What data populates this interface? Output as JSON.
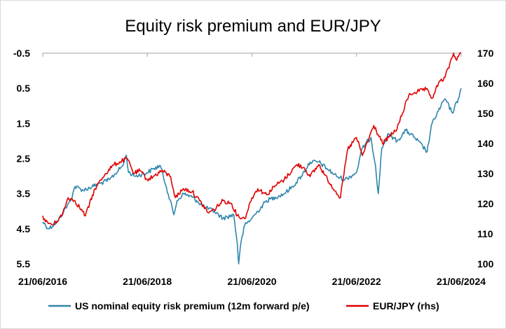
{
  "chart_data": {
    "type": "line",
    "title": "Equity risk premium and EUR/JPY",
    "x_tick_labels": [
      "21/06/2016",
      "21/06/2018",
      "21/06/2020",
      "21/06/2022",
      "21/06/2024"
    ],
    "x_range": [
      "2016-06-21",
      "2024-06-21"
    ],
    "y_left": {
      "inverted": true,
      "range": [
        -0.5,
        5.5
      ],
      "ticks": [
        -0.5,
        0.5,
        1.5,
        2.5,
        3.5,
        4.5,
        5.5
      ],
      "tick_labels": [
        "-0.5",
        "0.5",
        "1.5",
        "2.5",
        "3.5",
        "4.5",
        "5.5"
      ]
    },
    "y_right": {
      "range": [
        100,
        170
      ],
      "ticks": [
        100,
        110,
        120,
        130,
        140,
        150,
        160,
        170
      ],
      "tick_labels": [
        "100",
        "110",
        "120",
        "130",
        "140",
        "150",
        "160",
        "170"
      ]
    },
    "grid": false,
    "legend_position": "bottom",
    "series": [
      {
        "name": "US nominal equity risk premium (12m forward p/e)",
        "axis": "left",
        "color": "#2E86AB",
        "points": [
          [
            "2016-06-21",
            4.3
          ],
          [
            "2016-08-01",
            4.5
          ],
          [
            "2016-10-01",
            4.3
          ],
          [
            "2016-11-15",
            4.0
          ],
          [
            "2017-01-01",
            3.7
          ],
          [
            "2017-02-01",
            3.3
          ],
          [
            "2017-04-01",
            3.4
          ],
          [
            "2017-06-01",
            3.3
          ],
          [
            "2017-08-01",
            3.2
          ],
          [
            "2017-10-01",
            3.1
          ],
          [
            "2018-01-01",
            2.7
          ],
          [
            "2018-01-26",
            2.4
          ],
          [
            "2018-02-10",
            2.9
          ],
          [
            "2018-04-01",
            3.0
          ],
          [
            "2018-06-21",
            2.9
          ],
          [
            "2018-08-01",
            2.8
          ],
          [
            "2018-09-20",
            2.7
          ],
          [
            "2018-11-01",
            3.3
          ],
          [
            "2018-12-24",
            4.1
          ],
          [
            "2019-01-15",
            3.7
          ],
          [
            "2019-03-01",
            3.5
          ],
          [
            "2019-05-01",
            3.6
          ],
          [
            "2019-06-01",
            3.7
          ],
          [
            "2019-08-01",
            3.9
          ],
          [
            "2019-10-01",
            4.0
          ],
          [
            "2019-12-01",
            4.2
          ],
          [
            "2020-02-15",
            4.1
          ],
          [
            "2020-03-10",
            4.9
          ],
          [
            "2020-03-20",
            5.5
          ],
          [
            "2020-04-01",
            5.0
          ],
          [
            "2020-05-01",
            4.4
          ],
          [
            "2020-06-21",
            4.2
          ],
          [
            "2020-08-01",
            4.0
          ],
          [
            "2020-10-01",
            3.7
          ],
          [
            "2020-12-01",
            3.6
          ],
          [
            "2021-02-01",
            3.5
          ],
          [
            "2021-04-01",
            3.3
          ],
          [
            "2021-06-01",
            3.0
          ],
          [
            "2021-08-01",
            2.6
          ],
          [
            "2021-10-01",
            2.6
          ],
          [
            "2021-12-01",
            2.8
          ],
          [
            "2022-02-01",
            3.0
          ],
          [
            "2022-04-01",
            3.1
          ],
          [
            "2022-06-21",
            2.9
          ],
          [
            "2022-08-01",
            2.2
          ],
          [
            "2022-09-30",
            1.9
          ],
          [
            "2022-11-01",
            2.7
          ],
          [
            "2022-11-20",
            3.5
          ],
          [
            "2022-12-15",
            2.2
          ],
          [
            "2023-02-01",
            1.8
          ],
          [
            "2023-04-01",
            2.0
          ],
          [
            "2023-06-01",
            1.7
          ],
          [
            "2023-08-01",
            1.9
          ],
          [
            "2023-10-27",
            2.3
          ],
          [
            "2023-12-01",
            1.5
          ],
          [
            "2024-02-01",
            1.0
          ],
          [
            "2024-03-01",
            0.8
          ],
          [
            "2024-04-20",
            1.2
          ],
          [
            "2024-06-01",
            0.8
          ],
          [
            "2024-06-21",
            0.5
          ]
        ]
      },
      {
        "name": "EUR/JPY (rhs)",
        "axis": "right",
        "color": "#E00000",
        "points": [
          [
            "2016-06-21",
            116
          ],
          [
            "2016-07-10",
            114
          ],
          [
            "2016-09-01",
            113
          ],
          [
            "2016-11-01",
            116
          ],
          [
            "2016-12-15",
            122
          ],
          [
            "2017-02-01",
            121
          ],
          [
            "2017-04-15",
            116
          ],
          [
            "2017-06-21",
            125
          ],
          [
            "2017-09-01",
            130
          ],
          [
            "2017-11-01",
            133
          ],
          [
            "2018-02-01",
            135
          ],
          [
            "2018-03-20",
            130
          ],
          [
            "2018-05-01",
            131
          ],
          [
            "2018-06-21",
            128
          ],
          [
            "2018-08-01",
            129
          ],
          [
            "2018-10-01",
            131
          ],
          [
            "2018-12-01",
            129
          ],
          [
            "2019-01-03",
            122
          ],
          [
            "2019-03-01",
            125
          ],
          [
            "2019-05-01",
            124
          ],
          [
            "2019-06-21",
            121
          ],
          [
            "2019-08-20",
            117
          ],
          [
            "2019-10-01",
            118
          ],
          [
            "2019-12-01",
            121
          ],
          [
            "2020-02-01",
            120
          ],
          [
            "2020-03-10",
            116
          ],
          [
            "2020-05-01",
            115
          ],
          [
            "2020-06-21",
            122
          ],
          [
            "2020-08-01",
            125
          ],
          [
            "2020-10-01",
            123
          ],
          [
            "2020-12-01",
            126
          ],
          [
            "2021-02-01",
            128
          ],
          [
            "2021-05-01",
            133
          ],
          [
            "2021-06-21",
            132
          ],
          [
            "2021-08-01",
            129
          ],
          [
            "2021-10-01",
            133
          ],
          [
            "2021-12-01",
            128
          ],
          [
            "2022-03-01",
            122
          ],
          [
            "2022-04-20",
            138
          ],
          [
            "2022-06-21",
            142
          ],
          [
            "2022-08-01",
            136
          ],
          [
            "2022-10-20",
            146
          ],
          [
            "2022-12-20",
            140
          ],
          [
            "2023-02-01",
            142
          ],
          [
            "2023-04-01",
            145
          ],
          [
            "2023-06-21",
            156
          ],
          [
            "2023-08-01",
            157
          ],
          [
            "2023-10-20",
            158
          ],
          [
            "2023-12-01",
            155
          ],
          [
            "2024-01-15",
            160
          ],
          [
            "2024-03-01",
            162
          ],
          [
            "2024-04-29",
            170
          ],
          [
            "2024-05-15",
            168
          ],
          [
            "2024-06-21",
            170
          ]
        ]
      }
    ]
  }
}
